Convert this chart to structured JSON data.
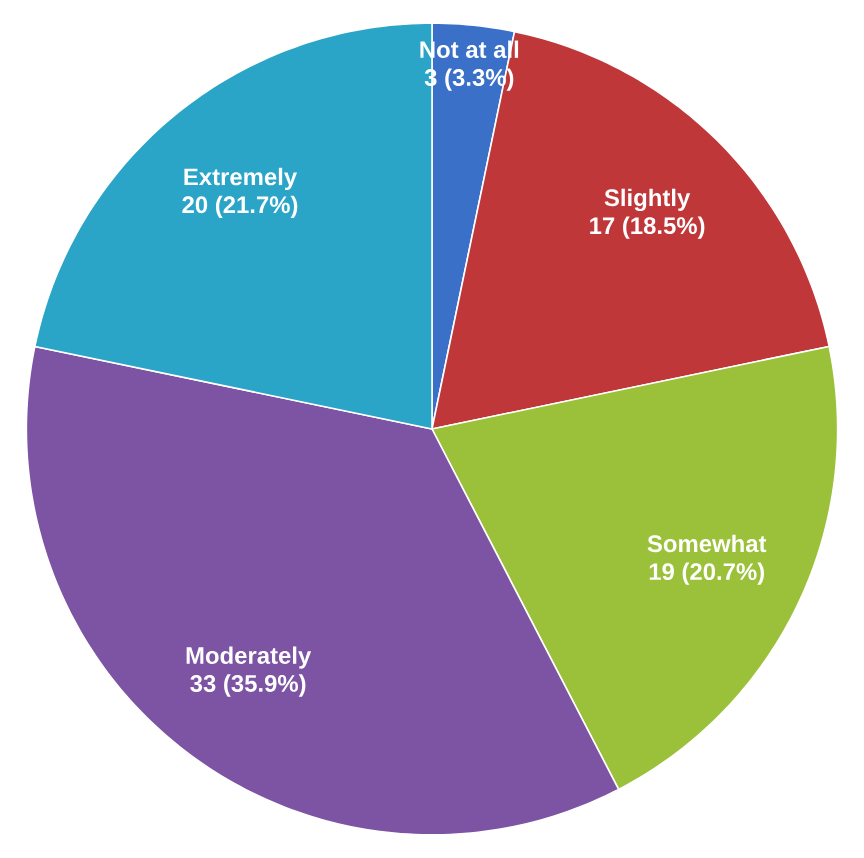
{
  "chart_data": {
    "type": "pie",
    "categories": [
      "Not at all",
      "Slightly",
      "Somewhat",
      "Moderately",
      "Extremely"
    ],
    "values": [
      3,
      17,
      19,
      33,
      20
    ],
    "value_labels": [
      "3 (3.3%)",
      "17 (18.5%)",
      "19 (20.7%)",
      "33 (35.9%)",
      "20 (21.7%)"
    ],
    "colors": [
      "#3a70c8",
      "#c0373a",
      "#9bc13b",
      "#7d54a3",
      "#2aa5c8"
    ]
  }
}
